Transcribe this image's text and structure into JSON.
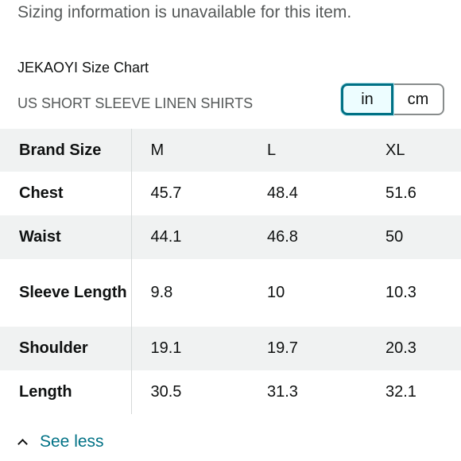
{
  "notice": "Sizing information is unavailable for this item.",
  "size_chart": {
    "title": "JEKAOYI Size Chart",
    "subtitle": "US SHORT SLEEVE LINEN SHIRTS",
    "unit_toggle": {
      "options": [
        "in",
        "cm"
      ],
      "selected": "in",
      "accent_color": "#007185"
    },
    "header_row": {
      "label": "Brand Size",
      "values": [
        "M",
        "L",
        "XL"
      ]
    },
    "rows": [
      {
        "label": "Chest",
        "values": [
          "45.7",
          "48.4",
          "51.6"
        ]
      },
      {
        "label": "Waist",
        "values": [
          "44.1",
          "46.8",
          "50"
        ]
      },
      {
        "label": "Sleeve Length",
        "values": [
          "9.8",
          "10",
          "10.3"
        ]
      },
      {
        "label": "Shoulder",
        "values": [
          "19.1",
          "19.7",
          "20.3"
        ]
      },
      {
        "label": "Length",
        "values": [
          "30.5",
          "31.3",
          "32.1"
        ]
      }
    ]
  },
  "see_less": {
    "label": "See less",
    "icon": "chevron-up-icon"
  }
}
